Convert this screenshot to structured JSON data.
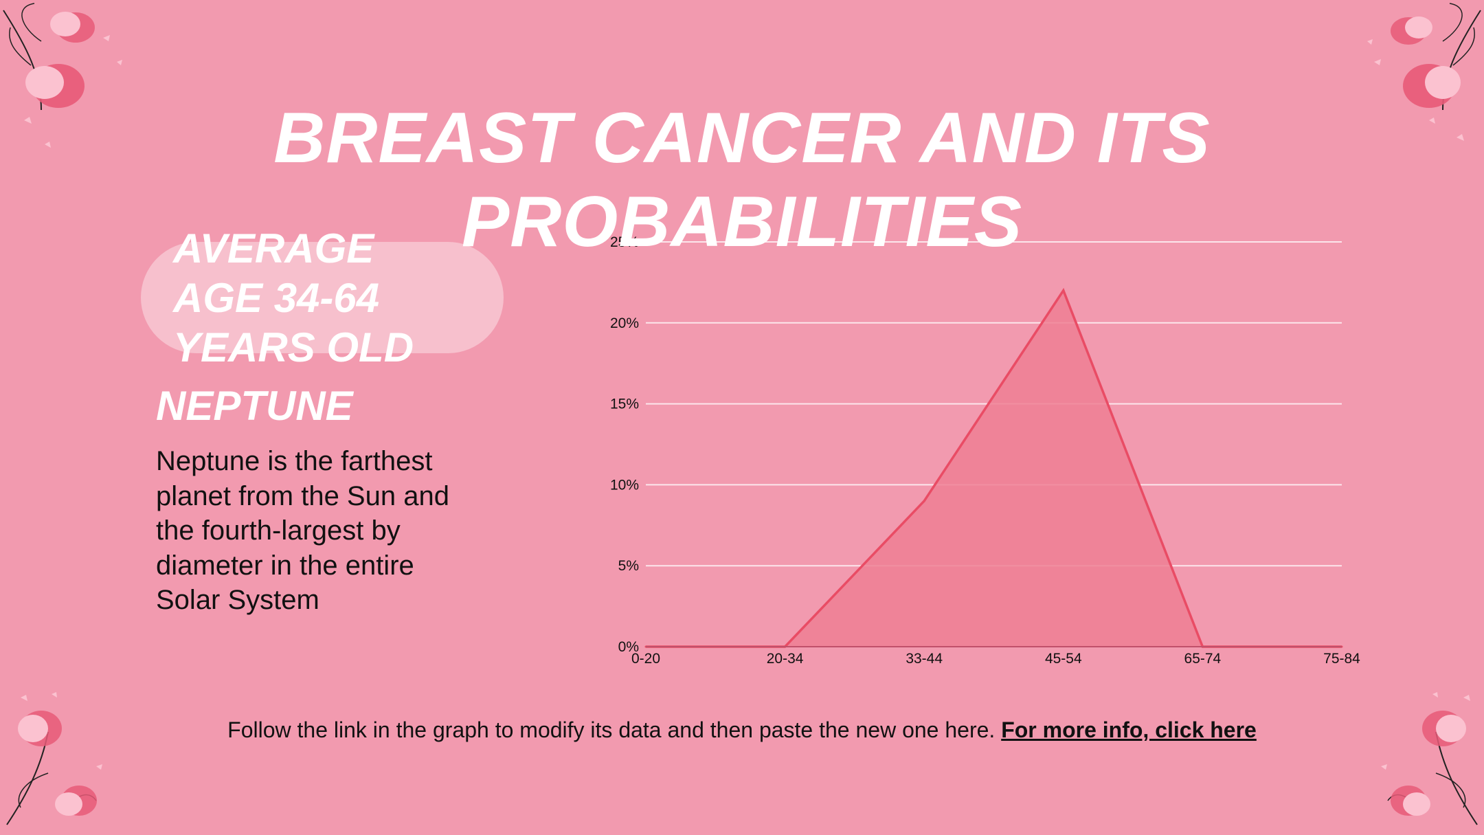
{
  "slide": {
    "title": "BREAST CANCER AND ITS PROBABILITIES",
    "age_label": "AVERAGE AGE 34-64 YEARS OLD",
    "section_heading": "NEPTUNE",
    "section_body": "Neptune is the farthest planet from the Sun and the fourth-largest by diameter in the entire Solar System",
    "footer_text": "Follow the link in the graph to modify its data and then paste the new one here.",
    "footer_link": "For more info, click here"
  },
  "colors": {
    "background": "#f29aaf",
    "area_fill": "#ee7f94",
    "area_line": "#e94c65",
    "gridline": "#fce6ec",
    "accent_dark": "#e85a78",
    "accent_light": "#fbc2d0"
  },
  "chart_data": {
    "type": "area",
    "title": "",
    "xlabel": "",
    "ylabel": "",
    "categories": [
      "0-20",
      "20-34",
      "33-44",
      "45-54",
      "65-74",
      "75-84"
    ],
    "series": [
      {
        "values": [
          0,
          0,
          9,
          22,
          0,
          0
        ]
      }
    ],
    "ylim": [
      0,
      25
    ],
    "yticks": [
      "0%",
      "5%",
      "10%",
      "15%",
      "20%",
      "25%"
    ],
    "grid": true,
    "legend": "none"
  }
}
